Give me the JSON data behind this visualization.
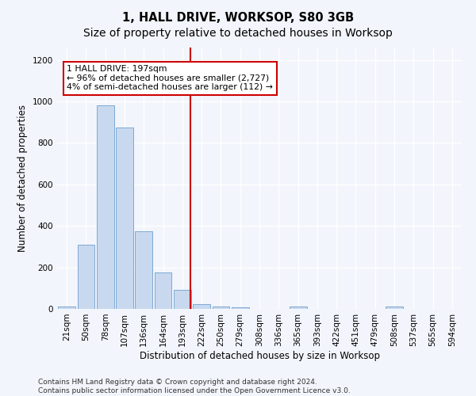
{
  "title": "1, HALL DRIVE, WORKSOP, S80 3GB",
  "subtitle": "Size of property relative to detached houses in Worksop",
  "xlabel": "Distribution of detached houses by size in Worksop",
  "ylabel": "Number of detached properties",
  "bar_labels": [
    "21sqm",
    "50sqm",
    "78sqm",
    "107sqm",
    "136sqm",
    "164sqm",
    "193sqm",
    "222sqm",
    "250sqm",
    "279sqm",
    "308sqm",
    "336sqm",
    "365sqm",
    "393sqm",
    "422sqm",
    "451sqm",
    "479sqm",
    "508sqm",
    "537sqm",
    "565sqm",
    "594sqm"
  ],
  "bar_values": [
    10,
    310,
    980,
    875,
    375,
    175,
    90,
    22,
    12,
    8,
    0,
    0,
    12,
    0,
    0,
    0,
    0,
    10,
    0,
    0,
    0
  ],
  "bar_color": "#c8d8ef",
  "bar_edgecolor": "#7baad4",
  "ylim": [
    0,
    1260
  ],
  "yticks": [
    0,
    200,
    400,
    600,
    800,
    1000,
    1200
  ],
  "vline_x": 6.42,
  "vline_color": "#cc0000",
  "annotation_text": "1 HALL DRIVE: 197sqm\n← 96% of detached houses are smaller (2,727)\n4% of semi-detached houses are larger (112) →",
  "annotation_box_color": "#ffffff",
  "annotation_box_edgecolor": "#cc0000",
  "footer_line1": "Contains HM Land Registry data © Crown copyright and database right 2024.",
  "footer_line2": "Contains public sector information licensed under the Open Government Licence v3.0.",
  "bg_color": "#f2f5fb",
  "plot_bg_color": "#f2f5fb",
  "title_fontsize": 10.5,
  "label_fontsize": 8.5,
  "tick_fontsize": 7.5,
  "footer_fontsize": 6.5,
  "grid_color": "#ffffff"
}
